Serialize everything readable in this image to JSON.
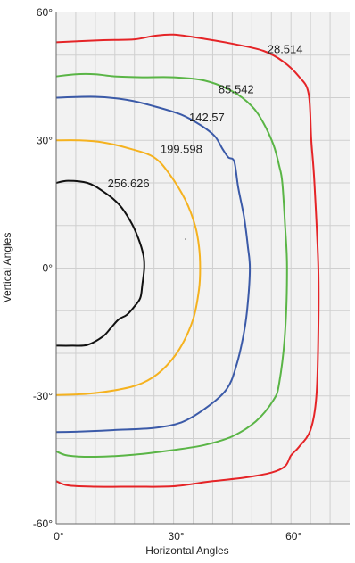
{
  "chart_data": {
    "type": "line",
    "title": "",
    "xlabel": "Horizontal Angles",
    "ylabel": "Vertical Angles",
    "xlim": [
      0,
      75
    ],
    "ylim": [
      -60,
      60
    ],
    "x_ticks": [
      "0°",
      "30°",
      "60°"
    ],
    "y_ticks": [
      "60°",
      "30°",
      "0°",
      "-30°",
      "-60°"
    ],
    "grid": true,
    "series": [
      {
        "name": "28.514",
        "color": "#e52427",
        "label_pos": [
          58.5,
          50.5
        ],
        "points": [
          [
            0,
            53
          ],
          [
            12,
            53.5
          ],
          [
            20,
            53.7
          ],
          [
            25,
            54.5
          ],
          [
            30,
            54.8
          ],
          [
            38,
            53.8
          ],
          [
            46,
            52.5
          ],
          [
            53,
            51
          ],
          [
            58,
            48.5
          ],
          [
            62,
            45
          ],
          [
            64.5,
            41
          ],
          [
            65.2,
            30
          ],
          [
            66,
            20
          ],
          [
            67,
            0
          ],
          [
            67,
            -15
          ],
          [
            66.5,
            -30
          ],
          [
            65,
            -38
          ],
          [
            62,
            -42
          ],
          [
            60,
            -44
          ],
          [
            58.5,
            -46.5
          ],
          [
            55,
            -48
          ],
          [
            48,
            -49.2
          ],
          [
            40,
            -50
          ],
          [
            30,
            -51.2
          ],
          [
            20,
            -51.3
          ],
          [
            10,
            -51.3
          ],
          [
            3,
            -51
          ],
          [
            0,
            -50
          ]
        ]
      },
      {
        "name": "85.542",
        "color": "#5ab546",
        "label_pos": [
          46,
          41
        ],
        "points": [
          [
            0,
            45
          ],
          [
            5,
            45.5
          ],
          [
            10,
            45.5
          ],
          [
            15,
            45
          ],
          [
            22,
            44.8
          ],
          [
            30,
            44.8
          ],
          [
            38,
            44
          ],
          [
            45,
            41.5
          ],
          [
            50,
            38
          ],
          [
            53,
            34
          ],
          [
            55.5,
            29
          ],
          [
            57,
            24
          ],
          [
            57.8,
            20
          ],
          [
            58.5,
            10
          ],
          [
            59,
            0
          ],
          [
            58.5,
            -15
          ],
          [
            57,
            -27
          ],
          [
            55.5,
            -31
          ],
          [
            51,
            -36
          ],
          [
            45,
            -39.5
          ],
          [
            38,
            -41.5
          ],
          [
            30,
            -42.7
          ],
          [
            20,
            -43.8
          ],
          [
            10,
            -44.3
          ],
          [
            3,
            -44
          ],
          [
            0,
            -43
          ]
        ]
      },
      {
        "name": "142.57",
        "color": "#3b5aa8",
        "label_pos": [
          38.5,
          34.5
        ],
        "points": [
          [
            0,
            40
          ],
          [
            10,
            40.2
          ],
          [
            18,
            39.5
          ],
          [
            25,
            38
          ],
          [
            32,
            36
          ],
          [
            37,
            33.5
          ],
          [
            40.5,
            31
          ],
          [
            42.5,
            28
          ],
          [
            44,
            26
          ],
          [
            45.5,
            25
          ],
          [
            46.5,
            19
          ],
          [
            48,
            12
          ],
          [
            49,
            5
          ],
          [
            49.5,
            0
          ],
          [
            49,
            -8
          ],
          [
            48,
            -15
          ],
          [
            46,
            -23
          ],
          [
            43.5,
            -28.5
          ],
          [
            38,
            -33
          ],
          [
            32,
            -36.2
          ],
          [
            25,
            -37.5
          ],
          [
            15,
            -38
          ],
          [
            5,
            -38.4
          ],
          [
            0,
            -38.5
          ]
        ]
      },
      {
        "name": "199.598",
        "color": "#f5b21f",
        "label_pos": [
          32,
          27
        ],
        "points": [
          [
            0,
            30
          ],
          [
            6,
            30
          ],
          [
            12,
            29.5
          ],
          [
            19,
            28
          ],
          [
            25,
            26
          ],
          [
            29,
            22
          ],
          [
            33,
            16
          ],
          [
            35.5,
            10
          ],
          [
            36.5,
            5
          ],
          [
            36.8,
            0
          ],
          [
            36.5,
            -5
          ],
          [
            35,
            -12
          ],
          [
            31.5,
            -19
          ],
          [
            27,
            -24
          ],
          [
            22,
            -27
          ],
          [
            16,
            -28.5
          ],
          [
            8,
            -29.5
          ],
          [
            0,
            -29.8
          ]
        ]
      },
      {
        "name": "256.626",
        "color": "#111111",
        "label_pos": [
          18.5,
          19
        ],
        "points": [
          [
            0,
            20
          ],
          [
            3,
            20.5
          ],
          [
            8,
            20
          ],
          [
            12,
            18
          ],
          [
            16,
            15
          ],
          [
            19,
            11
          ],
          [
            21,
            7
          ],
          [
            22.3,
            3
          ],
          [
            22.5,
            0
          ],
          [
            22,
            -4
          ],
          [
            21.5,
            -7
          ],
          [
            20,
            -9
          ],
          [
            18,
            -11
          ],
          [
            16,
            -12
          ],
          [
            14,
            -14
          ],
          [
            12,
            -16
          ],
          [
            8,
            -18
          ],
          [
            4,
            -18.2
          ],
          [
            0,
            -18.2
          ]
        ]
      }
    ]
  }
}
